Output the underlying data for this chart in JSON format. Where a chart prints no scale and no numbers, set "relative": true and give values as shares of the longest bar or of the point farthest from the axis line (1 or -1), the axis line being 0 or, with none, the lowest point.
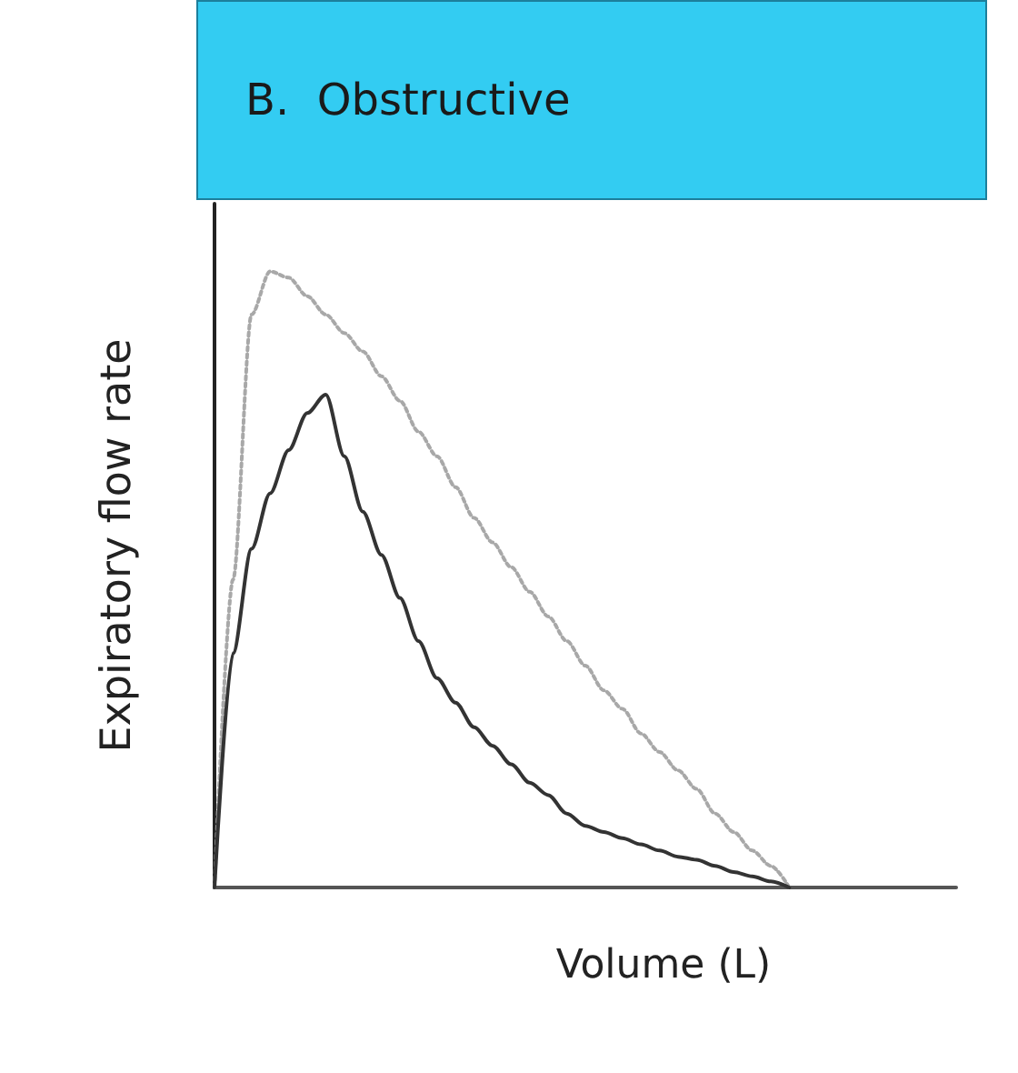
{
  "chart_data": {
    "type": "line",
    "title": "B.  Obstructive",
    "xlabel": "Volume (L)",
    "ylabel": "Expiratory flow rate",
    "relative": true,
    "marker": "none",
    "categories": [
      null,
      null,
      null,
      null,
      null,
      null,
      null,
      null,
      null,
      null,
      null,
      null,
      null,
      null,
      null,
      null,
      null,
      null,
      null,
      null,
      null,
      null,
      null,
      null,
      null,
      null,
      null,
      null,
      null,
      null,
      null,
      null,
      null,
      null,
      null,
      null,
      null,
      null,
      null,
      null,
      null
    ],
    "series": [
      {
        "color": "#a8a8a8",
        "line_style": "dotted",
        "values": [
          0,
          0.5,
          0.93,
          1.0,
          0.99,
          0.96,
          0.93,
          0.9,
          0.87,
          0.83,
          0.79,
          0.74,
          0.7,
          0.65,
          0.6,
          0.56,
          0.52,
          0.48,
          0.44,
          0.4,
          0.36,
          0.32,
          0.29,
          0.25,
          0.22,
          0.19,
          0.16,
          0.12,
          0.09,
          0.06,
          0.035,
          0,
          null,
          null,
          null,
          null,
          null,
          null,
          null,
          null,
          null
        ]
      },
      {
        "color": "#333333",
        "line_style": "solid",
        "values": [
          0,
          0.38,
          0.55,
          0.64,
          0.71,
          0.77,
          0.8,
          0.7,
          0.61,
          0.54,
          0.47,
          0.4,
          0.34,
          0.3,
          0.26,
          0.23,
          0.2,
          0.17,
          0.15,
          0.12,
          0.1,
          0.09,
          0.08,
          0.07,
          0.06,
          0.05,
          0.045,
          0.035,
          0.025,
          0.018,
          0.01,
          0,
          null,
          null,
          null,
          null,
          null,
          null,
          null,
          null,
          null
        ]
      }
    ]
  }
}
